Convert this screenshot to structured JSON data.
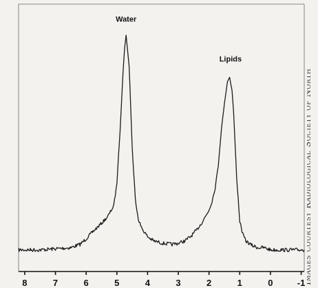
{
  "chart_data": {
    "type": "line",
    "title": "",
    "xlabel": "",
    "ylabel": "",
    "x_reversed": true,
    "xlim": [
      8.2,
      -1.1
    ],
    "ylim": [
      0,
      1.0
    ],
    "tick_labels": [
      "8",
      "7",
      "6",
      "5",
      "4",
      "3",
      "2",
      "1",
      "0",
      "-1"
    ],
    "tick_values": [
      8,
      7,
      6,
      5,
      4,
      3,
      2,
      1,
      0,
      -1
    ],
    "annotations": [
      {
        "text": "Water",
        "x": 4.7,
        "y": 0.995
      },
      {
        "text": "Lipids",
        "x": 1.3,
        "y": 0.815
      }
    ],
    "series": [
      {
        "x": [
          8.2,
          7.5,
          7.0,
          6.5,
          6.2,
          6.0,
          5.8,
          5.5,
          5.3,
          5.1,
          5.0,
          4.9,
          4.8,
          4.75,
          4.7,
          4.6,
          4.5,
          4.4,
          4.3,
          4.2,
          4.0,
          3.8,
          3.5,
          3.2,
          3.0,
          2.8,
          2.6,
          2.4,
          2.2,
          2.0,
          1.9,
          1.8,
          1.7,
          1.6,
          1.5,
          1.4,
          1.33,
          1.25,
          1.2,
          1.1,
          1.0,
          0.9,
          0.8,
          0.6,
          0.4,
          0.2,
          0.0,
          -0.3,
          -0.6,
          -1.0,
          -1.1
        ],
        "y": [
          0.02,
          0.02,
          0.025,
          0.03,
          0.045,
          0.07,
          0.1,
          0.14,
          0.17,
          0.22,
          0.32,
          0.55,
          0.82,
          0.93,
          0.99,
          0.85,
          0.48,
          0.25,
          0.16,
          0.12,
          0.08,
          0.06,
          0.05,
          0.045,
          0.05,
          0.06,
          0.08,
          0.11,
          0.15,
          0.2,
          0.24,
          0.3,
          0.4,
          0.56,
          0.68,
          0.78,
          0.8,
          0.74,
          0.64,
          0.35,
          0.15,
          0.09,
          0.06,
          0.04,
          0.03,
          0.03,
          0.02,
          0.02,
          0.02,
          0.02,
          0.02
        ]
      }
    ]
  },
  "credit_text": "Images courtesy Radiological Society of North"
}
